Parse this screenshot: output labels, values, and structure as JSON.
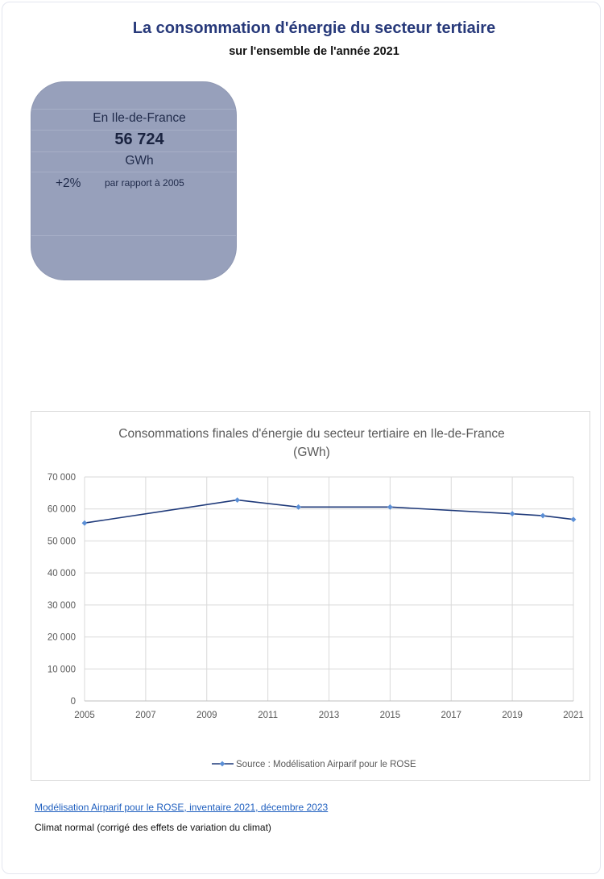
{
  "header": {
    "title": "La consommation d'énergie du secteur tertiaire",
    "subtitle": "sur l'ensemble de l'année 2021"
  },
  "kpi": {
    "region": "En Ile-de-France",
    "value": "56 724",
    "unit": "GWh",
    "change": "+2%",
    "comparison": "par rapport à 2005"
  },
  "chart_data": {
    "type": "line",
    "title": "Consommations finales d'énergie du secteur tertiaire en Ile-de-France",
    "title_line2": "(GWh)",
    "x": [
      2005,
      2010,
      2012,
      2015,
      2019,
      2020,
      2021
    ],
    "xlim": [
      2005,
      2021
    ],
    "xticks": [
      "2005",
      "2007",
      "2009",
      "2011",
      "2013",
      "2015",
      "2017",
      "2019",
      "2021"
    ],
    "ylim": [
      0,
      70000
    ],
    "yticks": [
      "0",
      "10 000",
      "20 000",
      "30 000",
      "40 000",
      "50 000",
      "60 000",
      "70 000"
    ],
    "series": [
      {
        "name": "Source : Modélisation Airparif pour le ROSE",
        "values": [
          55600,
          62800,
          60600,
          60600,
          58500,
          57900,
          56724
        ],
        "color": "#1f3a7a",
        "marker_color": "#5b8fd6"
      }
    ],
    "grid": true,
    "legend": "bottom"
  },
  "footer": {
    "source_link": "Modélisation Airparif pour le ROSE, inventaire 2021, décembre 2023",
    "note": "Climat normal (corrigé des effets de variation du climat)"
  }
}
